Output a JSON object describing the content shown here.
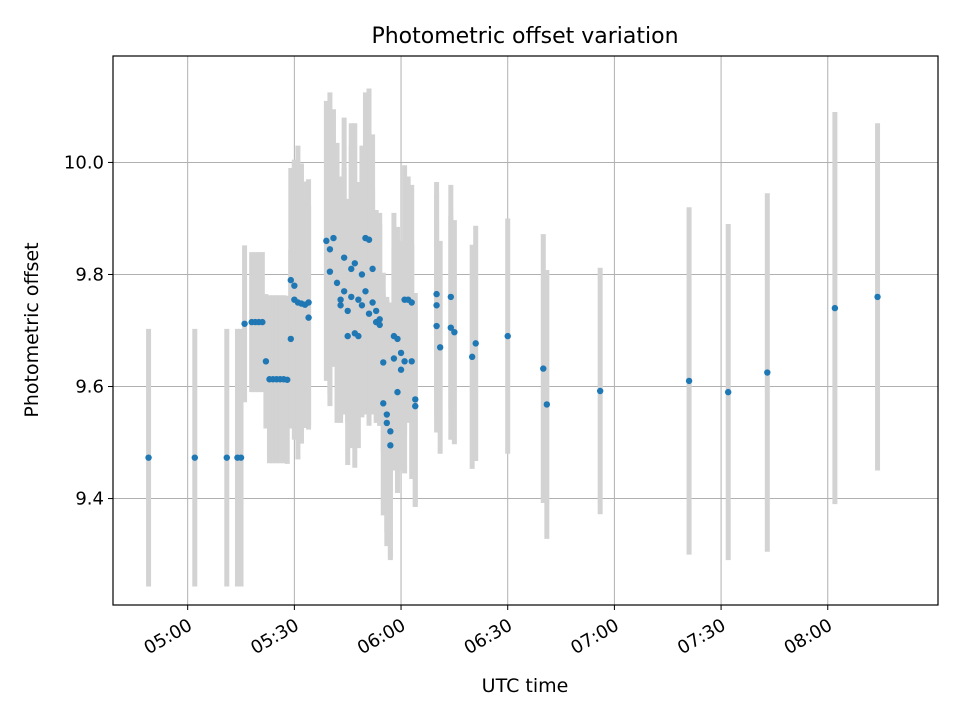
{
  "chart_data": {
    "type": "scatter",
    "title": "Photometric offset variation",
    "xlabel": "UTC time",
    "ylabel": "Photometric offset",
    "x_ticks": [
      "05:00",
      "05:30",
      "06:00",
      "06:30",
      "07:00",
      "07:30",
      "08:00"
    ],
    "y_ticks": [
      9.4,
      9.6,
      9.8,
      10.0
    ],
    "xlim": [
      "04:39",
      "08:31"
    ],
    "ylim": [
      9.21,
      10.19
    ],
    "grid": true,
    "legend": "none",
    "marker_color": "#1f77b4",
    "errorbar_color": "#d3d3d3",
    "points": [
      [
        "04:49",
        9.473,
        0.23
      ],
      [
        "05:02",
        9.473,
        0.23
      ],
      [
        "05:11",
        9.473,
        0.23
      ],
      [
        "05:14",
        9.473,
        0.23
      ],
      [
        "05:15",
        9.473,
        0.23
      ],
      [
        "05:16",
        9.712,
        0.14
      ],
      [
        "05:18",
        9.715,
        0.125
      ],
      [
        "05:19",
        9.715,
        0.125
      ],
      [
        "05:20",
        9.715,
        0.125
      ],
      [
        "05:21",
        9.715,
        0.125
      ],
      [
        "05:22",
        9.645,
        0.12
      ],
      [
        "05:23",
        9.613,
        0.15
      ],
      [
        "05:24",
        9.613,
        0.15
      ],
      [
        "05:25",
        9.613,
        0.15
      ],
      [
        "05:26",
        9.613,
        0.15
      ],
      [
        "05:27",
        9.613,
        0.15
      ],
      [
        "05:28",
        9.612,
        0.15
      ],
      [
        "05:29",
        9.685,
        0.16
      ],
      [
        "05:29",
        9.79,
        0.2
      ],
      [
        "05:30",
        9.78,
        0.22
      ],
      [
        "05:30",
        9.755,
        0.25
      ],
      [
        "05:31",
        9.75,
        0.28
      ],
      [
        "05:32",
        9.748,
        0.25
      ],
      [
        "05:33",
        9.746,
        0.22
      ],
      [
        "05:34",
        9.75,
        0.22
      ],
      [
        "05:34",
        9.723,
        0.2
      ],
      [
        "05:39",
        9.86,
        0.25
      ],
      [
        "05:40",
        9.845,
        0.28
      ],
      [
        "05:40",
        9.805,
        0.22
      ],
      [
        "05:41",
        9.865,
        0.23
      ],
      [
        "05:42",
        9.785,
        0.25
      ],
      [
        "05:43",
        9.755,
        0.22
      ],
      [
        "05:43",
        9.745,
        0.2
      ],
      [
        "05:44",
        9.77,
        0.22
      ],
      [
        "05:44",
        9.83,
        0.25
      ],
      [
        "05:45",
        9.69,
        0.23
      ],
      [
        "05:45",
        9.735,
        0.2
      ],
      [
        "05:46",
        9.76,
        0.27
      ],
      [
        "05:46",
        9.81,
        0.26
      ],
      [
        "05:47",
        9.82,
        0.25
      ],
      [
        "05:47",
        9.695,
        0.24
      ],
      [
        "05:48",
        9.69,
        0.2
      ],
      [
        "05:48",
        9.755,
        0.21
      ],
      [
        "05:49",
        9.8,
        0.23
      ],
      [
        "05:49",
        9.745,
        0.2
      ],
      [
        "05:50",
        9.77,
        0.22
      ],
      [
        "05:50",
        9.865,
        0.26
      ],
      [
        "05:51",
        9.862,
        0.27
      ],
      [
        "05:51",
        9.73,
        0.2
      ],
      [
        "05:52",
        9.81,
        0.24
      ],
      [
        "05:52",
        9.75,
        0.2
      ],
      [
        "05:53",
        9.715,
        0.18
      ],
      [
        "05:53",
        9.735,
        0.18
      ],
      [
        "05:54",
        9.72,
        0.19
      ],
      [
        "05:54",
        9.71,
        0.18
      ],
      [
        "05:55",
        9.643,
        0.16
      ],
      [
        "05:55",
        9.57,
        0.2
      ],
      [
        "05:56",
        9.55,
        0.21
      ],
      [
        "05:56",
        9.535,
        0.22
      ],
      [
        "05:57",
        9.52,
        0.23
      ],
      [
        "05:57",
        9.495,
        0.2
      ],
      [
        "05:58",
        9.65,
        0.2
      ],
      [
        "05:58",
        9.69,
        0.22
      ],
      [
        "05:59",
        9.685,
        0.2
      ],
      [
        "05:59",
        9.59,
        0.18
      ],
      [
        "06:00",
        9.66,
        0.2
      ],
      [
        "06:00",
        9.63,
        0.18
      ],
      [
        "06:01",
        9.755,
        0.24
      ],
      [
        "06:01",
        9.645,
        0.2
      ],
      [
        "06:02",
        9.755,
        0.22
      ],
      [
        "06:03",
        9.75,
        0.21
      ],
      [
        "06:03",
        9.645,
        0.21
      ],
      [
        "06:04",
        9.577,
        0.19
      ],
      [
        "06:04",
        9.565,
        0.18
      ],
      [
        "06:10",
        9.765,
        0.2
      ],
      [
        "06:10",
        9.745,
        0.2
      ],
      [
        "06:10",
        9.708,
        0.19
      ],
      [
        "06:11",
        9.67,
        0.19
      ],
      [
        "06:14",
        9.76,
        0.2
      ],
      [
        "06:14",
        9.705,
        0.2
      ],
      [
        "06:15",
        9.697,
        0.2
      ],
      [
        "06:20",
        9.653,
        0.2
      ],
      [
        "06:21",
        9.677,
        0.21
      ],
      [
        "06:30",
        9.69,
        0.21
      ],
      [
        "06:40",
        9.632,
        0.24
      ],
      [
        "06:41",
        9.568,
        0.24
      ],
      [
        "06:56",
        9.592,
        0.22
      ],
      [
        "07:21",
        9.61,
        0.31
      ],
      [
        "07:32",
        9.59,
        0.3
      ],
      [
        "07:43",
        9.625,
        0.32
      ],
      [
        "08:02",
        9.74,
        0.35
      ],
      [
        "08:14",
        9.76,
        0.31
      ]
    ]
  }
}
